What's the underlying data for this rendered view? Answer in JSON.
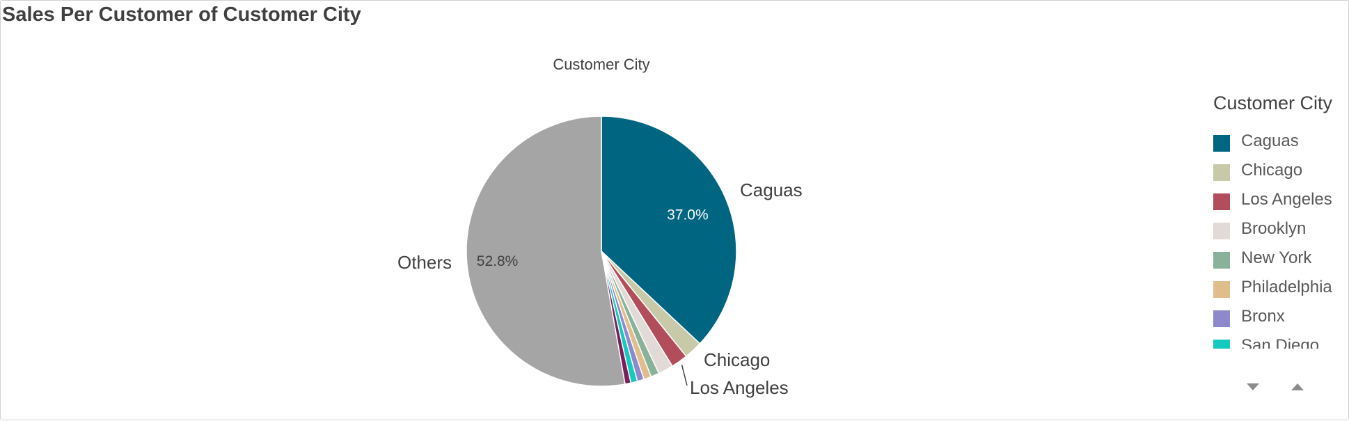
{
  "header": {
    "title": "Sales Per Customer of Customer City"
  },
  "chart_data": {
    "type": "pie",
    "title": "Customer City",
    "slices": [
      {
        "label": "Caguas",
        "value": 37.0,
        "color": "#006580",
        "value_label": "37.0%",
        "show_label": true
      },
      {
        "label": "Chicago",
        "value": 2.2,
        "color": "#c7c9a8",
        "show_label": true
      },
      {
        "label": "Los Angeles",
        "value": 2.0,
        "color": "#b24d5c",
        "show_label": true
      },
      {
        "label": "Brooklyn",
        "value": 1.8,
        "color": "#e1dad6",
        "show_label": false
      },
      {
        "label": "New York",
        "value": 1.0,
        "color": "#89b29b",
        "show_label": false
      },
      {
        "label": "Philadelphia",
        "value": 0.9,
        "color": "#e0be8c",
        "show_label": false
      },
      {
        "label": "Bronx",
        "value": 0.8,
        "color": "#8e88cc",
        "show_label": false
      },
      {
        "label": "San Diego",
        "value": 0.8,
        "color": "#14c9be",
        "show_label": false
      },
      {
        "label": "",
        "value": 0.7,
        "color": "#7a1f5c",
        "show_label": false
      },
      {
        "label": "Others",
        "value": 52.8,
        "color": "#a5a5a5",
        "value_label": "52.8%",
        "show_label": true
      }
    ]
  },
  "legend": {
    "title": "Customer City",
    "items": [
      {
        "label": "Caguas",
        "color": "#006580"
      },
      {
        "label": "Chicago",
        "color": "#c7c9a8"
      },
      {
        "label": "Los Angeles",
        "color": "#b24d5c"
      },
      {
        "label": "Brooklyn",
        "color": "#e1dad6"
      },
      {
        "label": "New York",
        "color": "#89b29b"
      },
      {
        "label": "Philadelphia",
        "color": "#e0be8c"
      },
      {
        "label": "Bronx",
        "color": "#8e88cc"
      },
      {
        "label": "San Diego",
        "color": "#14c9be"
      }
    ],
    "scroll_down_icon": "triangle-down-icon",
    "scroll_up_icon": "triangle-up-icon"
  }
}
